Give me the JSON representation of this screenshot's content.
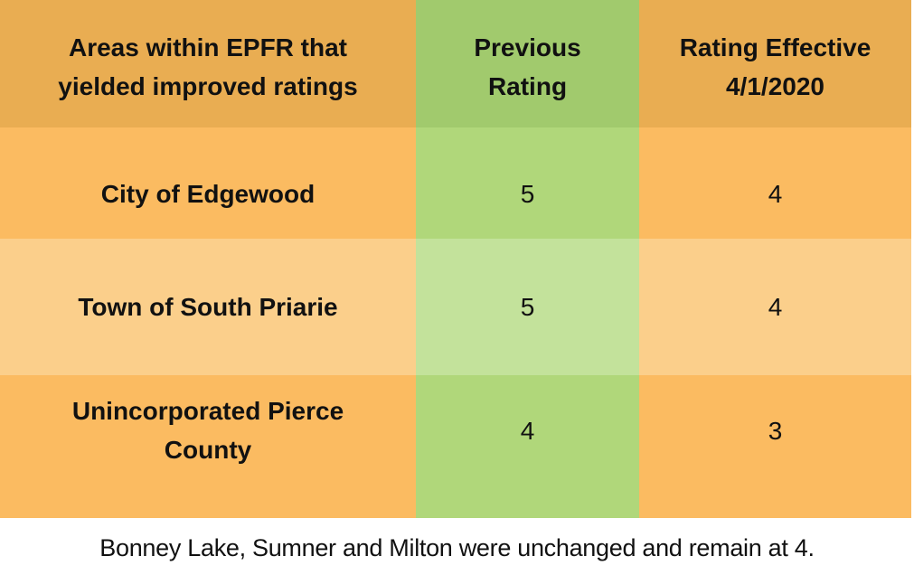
{
  "table": {
    "headers": [
      {
        "lines": [
          "Areas within EPFR that",
          "yielded improved ratings"
        ]
      },
      {
        "lines": [
          "Previous",
          "Rating"
        ]
      },
      {
        "lines": [
          "Rating Effective",
          "4/1/2020"
        ]
      }
    ],
    "rows": [
      {
        "area_lines": [
          "City of Edgewood"
        ],
        "previous": "5",
        "effective": "4"
      },
      {
        "area_lines": [
          "Town of South Priarie"
        ],
        "previous": "5",
        "effective": "4"
      },
      {
        "area_lines": [
          "Unincorporated Pierce",
          "County"
        ],
        "previous": "4",
        "effective": "3"
      }
    ]
  },
  "footnote": "Bonney Lake, Sumner and Milton were unchanged and remain at 4.",
  "colors": {
    "header_orange": "#e9ad52",
    "header_green": "#a1ca6d",
    "row_orange": "#fbbb61",
    "row_green": "#b0d77a",
    "row_alt_orange": "#fbcf8b",
    "row_alt_green": "#c3e29b"
  }
}
